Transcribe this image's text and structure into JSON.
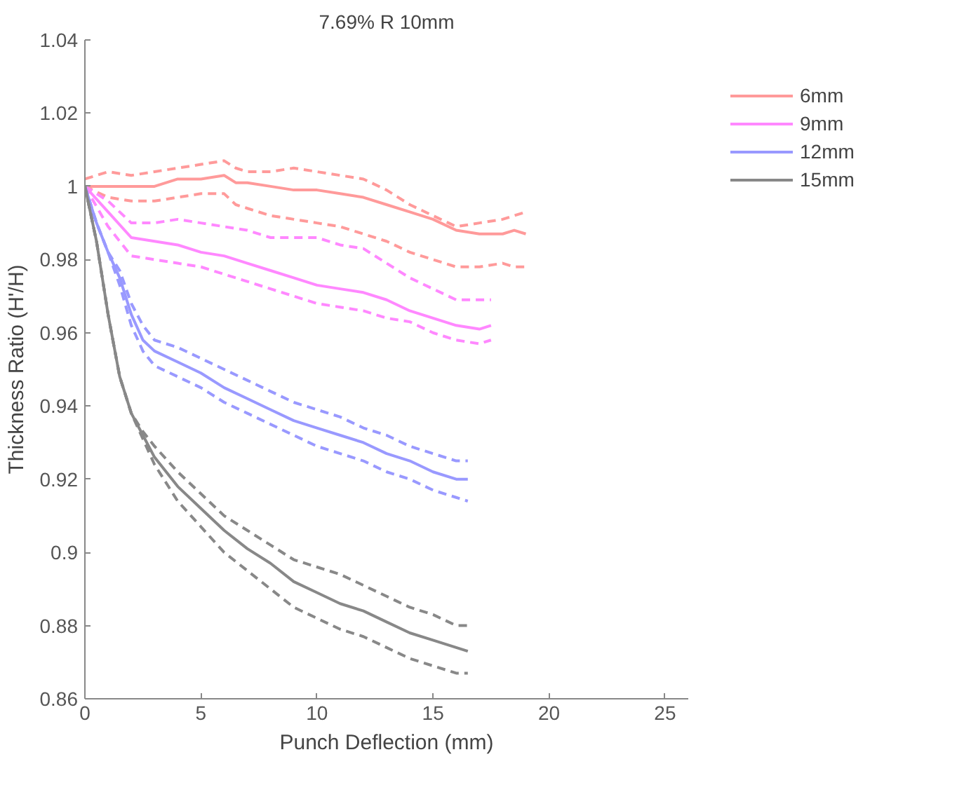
{
  "chart_data": {
    "type": "line",
    "title": "7.69% R 10mm",
    "xlabel": "Punch Deflection (mm)",
    "ylabel": "Thickness Ratio (H'/H)",
    "xlim": [
      0,
      26
    ],
    "ylim": [
      0.86,
      1.04
    ],
    "xticks": [
      0,
      5,
      10,
      15,
      20,
      25
    ],
    "yticks": [
      0.86,
      0.88,
      0.9,
      0.92,
      0.94,
      0.96,
      0.98,
      1,
      1.02,
      1.04
    ],
    "grid": false,
    "legend": "top right",
    "line_style": "solid",
    "series": [
      {
        "name": "6mm",
        "color": "#ff9a9a",
        "x": [
          0,
          1,
          2,
          3,
          4,
          5,
          6,
          6.5,
          7,
          8,
          9,
          10,
          11,
          12,
          13,
          14,
          15,
          16,
          17,
          18,
          18.5,
          19
        ],
        "values": [
          1.0,
          1.0,
          1.0,
          1.0,
          1.002,
          1.002,
          1.003,
          1.001,
          1.001,
          1.0,
          0.999,
          0.999,
          0.998,
          0.997,
          0.995,
          0.993,
          0.991,
          0.988,
          0.987,
          0.987,
          0.988,
          0.987
        ]
      },
      {
        "color": "#ff9a9a",
        "line_style": "dashed",
        "x": [
          0,
          1,
          2,
          3,
          4,
          5,
          6,
          6.5,
          7,
          8,
          9,
          10,
          11,
          12,
          13,
          14,
          15,
          16,
          17,
          18,
          18.5,
          19
        ],
        "values": [
          1.002,
          1.004,
          1.003,
          1.004,
          1.005,
          1.006,
          1.007,
          1.005,
          1.004,
          1.004,
          1.005,
          1.004,
          1.003,
          1.002,
          0.999,
          0.995,
          0.992,
          0.989,
          0.99,
          0.991,
          0.992,
          0.993
        ]
      },
      {
        "color": "#ff9a9a",
        "line_style": "dashed",
        "x": [
          0,
          1,
          2,
          3,
          4,
          5,
          6,
          6.5,
          7,
          8,
          9,
          10,
          11,
          12,
          13,
          14,
          15,
          16,
          17,
          18,
          18.5,
          19
        ],
        "values": [
          1.0,
          0.997,
          0.996,
          0.996,
          0.997,
          0.998,
          0.998,
          0.995,
          0.994,
          0.992,
          0.991,
          0.99,
          0.989,
          0.987,
          0.985,
          0.982,
          0.98,
          0.978,
          0.978,
          0.979,
          0.978,
          0.978
        ]
      },
      {
        "name": "9mm",
        "color": "#ff88ff",
        "x": [
          0,
          1,
          2,
          3,
          4,
          5,
          6,
          7,
          8,
          9,
          10,
          11,
          12,
          13,
          14,
          15,
          16,
          17,
          17.5
        ],
        "values": [
          1.0,
          0.993,
          0.986,
          0.985,
          0.984,
          0.982,
          0.981,
          0.979,
          0.977,
          0.975,
          0.973,
          0.972,
          0.971,
          0.969,
          0.966,
          0.964,
          0.962,
          0.961,
          0.962
        ]
      },
      {
        "color": "#ff88ff",
        "line_style": "dashed",
        "x": [
          0,
          1,
          2,
          3,
          4,
          5,
          6,
          7,
          8,
          9,
          10,
          11,
          12,
          13,
          14,
          15,
          16,
          17,
          17.5
        ],
        "values": [
          1.0,
          0.996,
          0.99,
          0.99,
          0.991,
          0.99,
          0.989,
          0.988,
          0.986,
          0.986,
          0.986,
          0.984,
          0.983,
          0.979,
          0.975,
          0.972,
          0.969,
          0.969,
          0.969
        ]
      },
      {
        "color": "#ff88ff",
        "line_style": "dashed",
        "x": [
          0,
          1,
          2,
          3,
          4,
          5,
          6,
          7,
          8,
          9,
          10,
          11,
          12,
          13,
          14,
          15,
          16,
          17,
          17.5
        ],
        "values": [
          1.0,
          0.989,
          0.981,
          0.98,
          0.979,
          0.978,
          0.976,
          0.974,
          0.972,
          0.97,
          0.968,
          0.967,
          0.966,
          0.964,
          0.963,
          0.96,
          0.958,
          0.957,
          0.958
        ]
      },
      {
        "name": "12mm",
        "color": "#9999ff",
        "x": [
          0,
          0.5,
          1,
          1.5,
          2,
          2.5,
          3,
          4,
          5,
          6,
          7,
          8,
          9,
          10,
          11,
          12,
          13,
          14,
          15,
          16,
          16.5
        ],
        "values": [
          1.0,
          0.99,
          0.982,
          0.975,
          0.965,
          0.958,
          0.955,
          0.952,
          0.949,
          0.945,
          0.942,
          0.939,
          0.936,
          0.934,
          0.932,
          0.93,
          0.927,
          0.925,
          0.922,
          0.92,
          0.92
        ]
      },
      {
        "color": "#9999ff",
        "line_style": "dashed",
        "x": [
          0,
          0.5,
          1,
          1.5,
          2,
          2.5,
          3,
          4,
          5,
          6,
          7,
          8,
          9,
          10,
          11,
          12,
          13,
          14,
          15,
          16,
          16.5
        ],
        "values": [
          1.0,
          0.99,
          0.982,
          0.977,
          0.968,
          0.962,
          0.958,
          0.956,
          0.953,
          0.95,
          0.947,
          0.944,
          0.941,
          0.939,
          0.937,
          0.934,
          0.932,
          0.929,
          0.927,
          0.925,
          0.925
        ]
      },
      {
        "color": "#9999ff",
        "line_style": "dashed",
        "x": [
          0,
          0.5,
          1,
          1.5,
          2,
          2.5,
          3,
          4,
          5,
          6,
          7,
          8,
          9,
          10,
          11,
          12,
          13,
          14,
          15,
          16,
          16.5
        ],
        "values": [
          1.0,
          0.99,
          0.982,
          0.973,
          0.962,
          0.955,
          0.951,
          0.948,
          0.945,
          0.941,
          0.938,
          0.935,
          0.932,
          0.929,
          0.927,
          0.925,
          0.922,
          0.92,
          0.917,
          0.915,
          0.914
        ]
      },
      {
        "name": "15mm",
        "color": "#888888",
        "x": [
          0,
          0.5,
          1,
          1.5,
          2,
          2.5,
          3,
          4,
          5,
          6,
          7,
          8,
          9,
          10,
          11,
          12,
          13,
          14,
          15,
          16,
          16.5
        ],
        "values": [
          1.0,
          0.985,
          0.965,
          0.948,
          0.938,
          0.932,
          0.926,
          0.918,
          0.912,
          0.906,
          0.901,
          0.897,
          0.892,
          0.889,
          0.886,
          0.884,
          0.881,
          0.878,
          0.876,
          0.874,
          0.873
        ]
      },
      {
        "color": "#888888",
        "line_style": "dashed",
        "x": [
          0,
          0.5,
          1,
          1.5,
          2,
          2.5,
          3,
          4,
          5,
          6,
          7,
          8,
          9,
          10,
          11,
          12,
          13,
          14,
          15,
          16,
          16.5
        ],
        "values": [
          1.0,
          0.985,
          0.965,
          0.948,
          0.938,
          0.933,
          0.929,
          0.922,
          0.916,
          0.91,
          0.906,
          0.902,
          0.898,
          0.896,
          0.894,
          0.891,
          0.888,
          0.885,
          0.883,
          0.88,
          0.88
        ]
      },
      {
        "color": "#888888",
        "line_style": "dashed",
        "x": [
          0,
          0.5,
          1,
          1.5,
          2,
          2.5,
          3,
          4,
          5,
          6,
          7,
          8,
          9,
          10,
          11,
          12,
          13,
          14,
          15,
          16,
          16.5
        ],
        "values": [
          1.0,
          0.985,
          0.965,
          0.948,
          0.938,
          0.931,
          0.924,
          0.914,
          0.907,
          0.9,
          0.895,
          0.89,
          0.885,
          0.882,
          0.879,
          0.877,
          0.874,
          0.871,
          0.869,
          0.867,
          0.867
        ]
      }
    ]
  }
}
